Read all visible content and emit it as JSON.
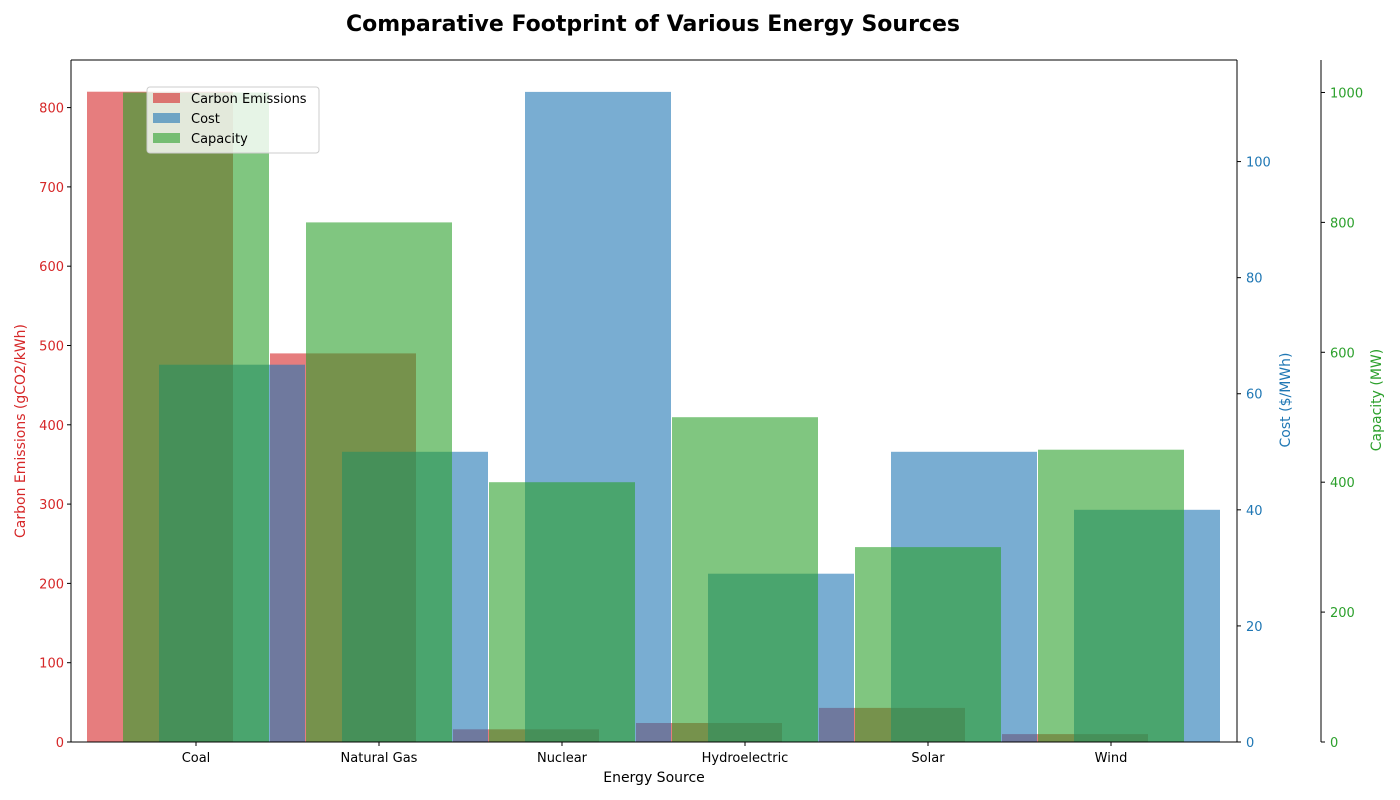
{
  "chart_data": {
    "type": "bar",
    "title": "Comparative Footprint of Various Energy Sources",
    "xlabel": "Energy Source",
    "categories": [
      "Coal",
      "Natural Gas",
      "Nuclear",
      "Hydroelectric",
      "Solar",
      "Wind"
    ],
    "series": [
      {
        "name": "Carbon Emissions",
        "axis": "left",
        "color": "#d62728",
        "opacity": 0.6,
        "values": [
          820,
          490,
          16,
          24,
          43,
          10
        ],
        "ylabel": "Carbon Emissions (gCO2/kWh)",
        "ylim": [
          0,
          860
        ],
        "yticks": [
          0,
          100,
          200,
          300,
          400,
          500,
          600,
          700,
          800
        ]
      },
      {
        "name": "Cost",
        "axis": "right",
        "color": "#1f77b4",
        "opacity": 0.6,
        "values": [
          65,
          50,
          112,
          29,
          50,
          40
        ],
        "ylabel": "Cost ($/MWh)",
        "ylim": [
          0,
          117.5
        ],
        "yticks": [
          0,
          20,
          40,
          60,
          80,
          100
        ]
      },
      {
        "name": "Capacity",
        "axis": "right-outer",
        "color": "#2ca02c",
        "opacity": 0.6,
        "values": [
          1000,
          800,
          400,
          500,
          300,
          450
        ],
        "ylabel": "Capacity (MW)",
        "ylim": [
          0,
          1050
        ],
        "yticks": [
          0,
          200,
          400,
          600,
          800,
          1000
        ]
      }
    ],
    "legend_position": "top-left",
    "grid": false
  }
}
